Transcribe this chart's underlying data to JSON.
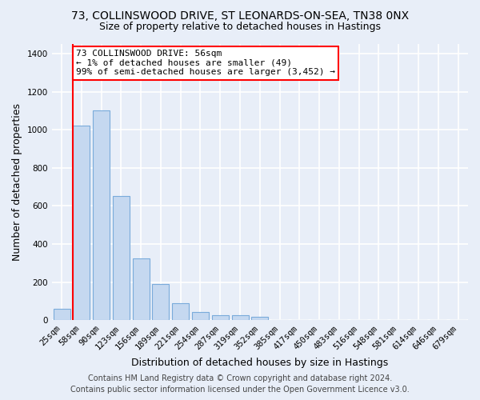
{
  "title_line1": "73, COLLINSWOOD DRIVE, ST LEONARDS-ON-SEA, TN38 0NX",
  "title_line2": "Size of property relative to detached houses in Hastings",
  "xlabel": "Distribution of detached houses by size in Hastings",
  "ylabel": "Number of detached properties",
  "categories": [
    "25sqm",
    "58sqm",
    "90sqm",
    "123sqm",
    "156sqm",
    "189sqm",
    "221sqm",
    "254sqm",
    "287sqm",
    "319sqm",
    "352sqm",
    "385sqm",
    "417sqm",
    "450sqm",
    "483sqm",
    "516sqm",
    "548sqm",
    "581sqm",
    "614sqm",
    "646sqm",
    "679sqm"
  ],
  "values": [
    58,
    1020,
    1100,
    650,
    325,
    190,
    88,
    42,
    28,
    25,
    18,
    0,
    0,
    0,
    0,
    0,
    0,
    0,
    0,
    0,
    0
  ],
  "bar_color": "#c5d8f0",
  "bar_edge_color": "#7aabdb",
  "highlight_color": "red",
  "annotation_text": "73 COLLINSWOOD DRIVE: 56sqm\n← 1% of detached houses are smaller (49)\n99% of semi-detached houses are larger (3,452) →",
  "annotation_box_color": "white",
  "annotation_box_edge_color": "red",
  "ylim": [
    0,
    1450
  ],
  "yticks": [
    0,
    200,
    400,
    600,
    800,
    1000,
    1200,
    1400
  ],
  "footer_line1": "Contains HM Land Registry data © Crown copyright and database right 2024.",
  "footer_line2": "Contains public sector information licensed under the Open Government Licence v3.0.",
  "background_color": "#e8eef8",
  "plot_bg_color": "#e8eef8",
  "grid_color": "white",
  "title_fontsize": 10,
  "subtitle_fontsize": 9,
  "axis_label_fontsize": 9,
  "tick_fontsize": 7.5,
  "footer_fontsize": 7,
  "annotation_fontsize": 8
}
